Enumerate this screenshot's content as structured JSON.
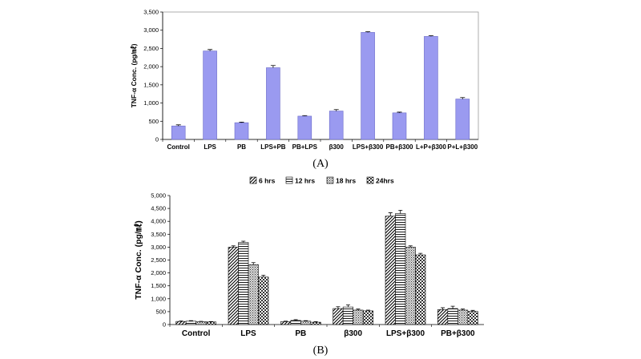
{
  "chart_data": [
    {
      "type": "bar",
      "caption": "(A)",
      "ylabel": "TNF-α Conc. (pg/㎖)",
      "ylim": [
        0,
        3500
      ],
      "yticks": [
        "0",
        "500",
        "1,000",
        "1,500",
        "2,000",
        "2,500",
        "3,000",
        "3,500"
      ],
      "categories": [
        "Control",
        "LPS",
        "PB",
        "LPS+PB",
        "PB+LPS",
        "β300",
        "LPS+β300",
        "PB+β300",
        "L+P+β300",
        "P+L+β300"
      ],
      "series": [
        {
          "values": [
            370,
            2430,
            460,
            1970,
            640,
            780,
            2940,
            730,
            2830,
            1110
          ],
          "errors": [
            30,
            40,
            15,
            60,
            15,
            40,
            20,
            20,
            20,
            40
          ]
        }
      ],
      "colors": {
        "bar": "#9a9af0",
        "bar_edge": "#6b6bc8",
        "plot_bg": "#ffffff",
        "axis": "#808080"
      },
      "grid": false
    },
    {
      "type": "bar",
      "caption": "(B)",
      "ylabel": "TNF-α Conc. (pg/㎖)",
      "ylim": [
        0,
        5000
      ],
      "yticks": [
        "0",
        "500",
        "1,000",
        "1,500",
        "2,000",
        "2,500",
        "3,000",
        "3,500",
        "4,000",
        "4,500",
        "5,000"
      ],
      "categories": [
        "Control",
        "LPS",
        "PB",
        "β300",
        "LPS+β300",
        "PB+β300"
      ],
      "legend_position": "top",
      "series": [
        {
          "name": "6 hrs",
          "pattern": "diagonal",
          "values": [
            120,
            3000,
            110,
            620,
            4200,
            580
          ],
          "errors": [
            20,
            50,
            20,
            70,
            130,
            70
          ]
        },
        {
          "name": "12 hrs",
          "pattern": "horizontal",
          "values": [
            130,
            3180,
            160,
            680,
            4300,
            620
          ],
          "errors": [
            20,
            50,
            30,
            80,
            130,
            90
          ]
        },
        {
          "name": "18 hrs",
          "pattern": "dotted",
          "values": [
            110,
            2320,
            130,
            560,
            3000,
            560
          ],
          "errors": [
            15,
            80,
            20,
            40,
            50,
            40
          ]
        },
        {
          "name": "24hrs",
          "pattern": "checker",
          "values": [
            100,
            1840,
            90,
            530,
            2700,
            510
          ],
          "errors": [
            15,
            70,
            20,
            30,
            60,
            40
          ]
        }
      ]
    }
  ]
}
